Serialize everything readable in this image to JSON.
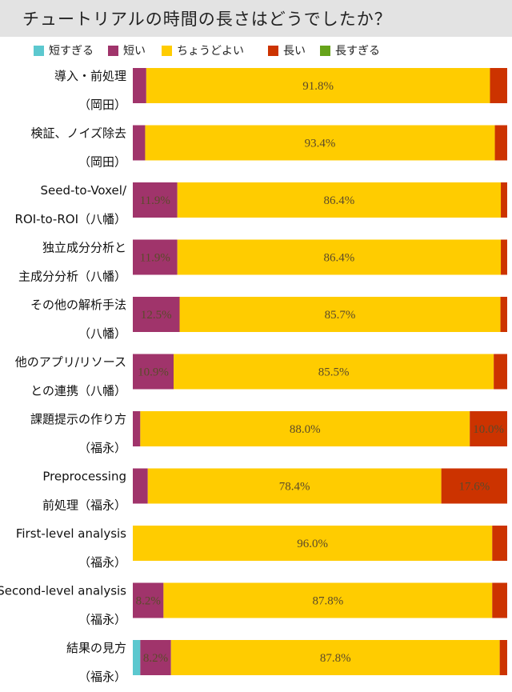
{
  "chart_data": {
    "type": "bar",
    "orientation": "horizontal",
    "stacked": true,
    "percent": true,
    "title": "チュートリアルの時間の長さはどうでしたか？",
    "legend_position": "top",
    "xlim": [
      0,
      100
    ],
    "categories": [
      {
        "lines": [
          "導入・前処理",
          "（岡田）"
        ]
      },
      {
        "lines": [
          "検証、ノイズ除去",
          "（岡田）"
        ]
      },
      {
        "lines": [
          "Seed-to-Voxel/",
          "ROI-to-ROI（八幡）"
        ]
      },
      {
        "lines": [
          "独立成分分析と",
          "主成分分析（八幡）"
        ]
      },
      {
        "lines": [
          "その他の解析手法",
          "（八幡）"
        ]
      },
      {
        "lines": [
          "他のアプリ/リソース",
          "との連携（八幡）"
        ]
      },
      {
        "lines": [
          "課題提示の作り方",
          "（福永）"
        ]
      },
      {
        "lines": [
          "Preprocessing",
          "前処理（福永）"
        ]
      },
      {
        "lines": [
          "First-level analysis",
          "（福永）"
        ]
      },
      {
        "lines": [
          "Second-level analysis",
          "（福永）"
        ]
      },
      {
        "lines": [
          "結果の見方",
          "（福永）"
        ]
      }
    ],
    "series": [
      {
        "name": "短すぎる",
        "color": "#5cc8cf",
        "values": [
          0,
          0,
          0,
          0,
          0,
          0,
          0,
          0,
          0,
          0,
          2.0
        ],
        "labels": [
          "",
          "",
          "",
          "",
          "",
          "",
          "",
          "",
          "",
          "",
          ""
        ]
      },
      {
        "name": "短い",
        "color": "#a0346b",
        "values": [
          3.6,
          3.3,
          11.9,
          11.9,
          12.5,
          10.9,
          2.0,
          4.0,
          0,
          8.2,
          8.2
        ],
        "labels": [
          "",
          "",
          "11.9%",
          "11.9%",
          "12.5%",
          "10.9%",
          "",
          "",
          "",
          "8.2%",
          "8.2%"
        ]
      },
      {
        "name": "ちょうどよい",
        "color": "#ffcc00",
        "values": [
          91.8,
          93.4,
          86.4,
          86.4,
          85.7,
          85.5,
          88.0,
          78.4,
          96.0,
          87.8,
          87.8
        ],
        "labels": [
          "91.8%",
          "93.4%",
          "86.4%",
          "86.4%",
          "85.7%",
          "85.5%",
          "88.0%",
          "78.4%",
          "96.0%",
          "87.8%",
          "87.8%"
        ]
      },
      {
        "name": "長い",
        "color": "#cc3300",
        "values": [
          4.6,
          3.3,
          1.7,
          1.7,
          1.8,
          3.6,
          10.0,
          17.6,
          4.0,
          4.0,
          2.0
        ],
        "labels": [
          "",
          "",
          "",
          "",
          "",
          "",
          "10.0%",
          "17.6%",
          "",
          "",
          ""
        ]
      },
      {
        "name": "長すぎる",
        "color": "#66a31a",
        "values": [
          0,
          0,
          0,
          0,
          0,
          0,
          0,
          0,
          0,
          0,
          0
        ],
        "labels": [
          "",
          "",
          "",
          "",
          "",
          "",
          "",
          "",
          "",
          "",
          ""
        ]
      }
    ]
  }
}
